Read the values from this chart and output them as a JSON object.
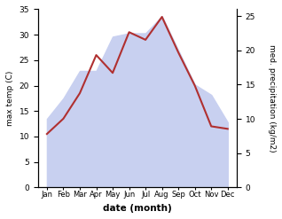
{
  "months": [
    "Jan",
    "Feb",
    "Mar",
    "Apr",
    "May",
    "Jun",
    "Jul",
    "Aug",
    "Sep",
    "Oct",
    "Nov",
    "Dec"
  ],
  "temperature": [
    10.5,
    13.5,
    18.5,
    26.0,
    22.5,
    30.5,
    29.0,
    33.5,
    26.5,
    20.0,
    12.0,
    11.5
  ],
  "precipitation": [
    10.0,
    13.0,
    17.0,
    17.0,
    22.0,
    22.5,
    22.5,
    25.0,
    20.0,
    15.0,
    13.5,
    9.5
  ],
  "temp_color": "#b03030",
  "precip_fill_color": "#c8d0f0",
  "temp_ylim": [
    0,
    35
  ],
  "precip_ylim": [
    0,
    26
  ],
  "temp_yticks": [
    0,
    5,
    10,
    15,
    20,
    25,
    30,
    35
  ],
  "precip_yticks": [
    0,
    5,
    10,
    15,
    20,
    25
  ],
  "xlabel": "date (month)",
  "ylabel_left": "max temp (C)",
  "ylabel_right": "med. precipitation (kg/m2)",
  "figsize": [
    3.18,
    2.47
  ],
  "dpi": 100
}
